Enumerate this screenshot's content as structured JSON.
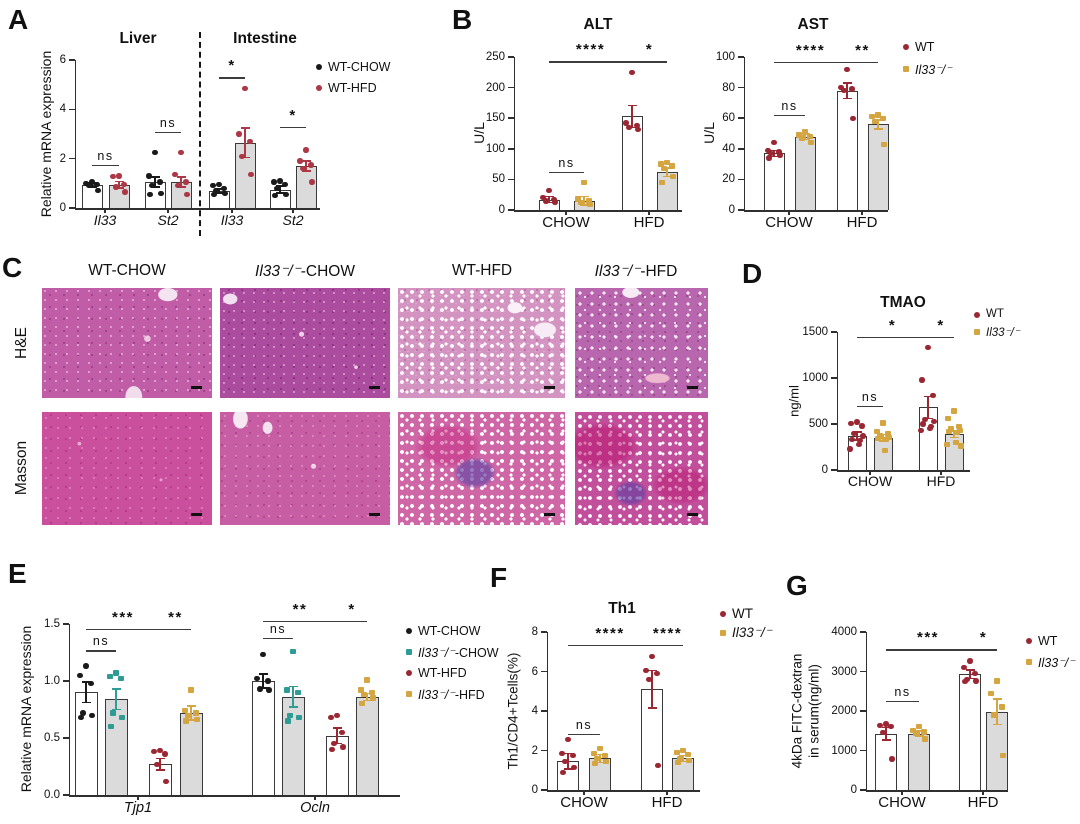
{
  "panels": {
    "a": "A",
    "b": "B",
    "c": "C",
    "d": "D",
    "e": "E",
    "f": "F",
    "g": "G"
  },
  "colors": {
    "wt_red": "#9B2733",
    "wt_red_bright": "#AD3745",
    "ko_yellow": "#D5A542",
    "teal": "#2E9C94",
    "black_dot": "#1A1A1A",
    "bar_gray": "#DBDBDB",
    "bar_border": "#3A3A3A",
    "axis": "#2F2F2F"
  },
  "panel_c": {
    "h1": "WT-CHOW",
    "h2_gene": "Il33⁻/⁻",
    "h2_rest": "-CHOW",
    "h3": "WT-HFD",
    "h4_gene": "Il33⁻/⁻",
    "h4_rest": "-HFD",
    "row1": "H&E",
    "row2": "Masson"
  },
  "chart_data": [
    {
      "id": "A",
      "type": "bar",
      "section_titles": [
        "Liver",
        "Intestine"
      ],
      "ylabel": "Relative mRNA expression",
      "ylim": [
        0,
        6
      ],
      "yticks": [
        0,
        2,
        4,
        6
      ],
      "categories": [
        "Il33",
        "St2",
        "Il33",
        "St2"
      ],
      "categories_italic": true,
      "series": [
        {
          "name": "WT-CHOW",
          "fill": "#FFFFFF",
          "color": "#1A1A1A",
          "marker": "circle",
          "values": [
            0.93,
            1.05,
            0.68,
            0.75
          ],
          "errors": [
            0.08,
            0.2,
            0.08,
            0.15
          ],
          "points": [
            [
              1.05,
              1.0,
              0.95,
              0.9,
              0.72
            ],
            [
              2.25,
              1.3,
              1.05,
              0.9,
              0.6,
              0.55
            ],
            [
              0.95,
              0.9,
              0.8,
              0.7,
              0.6,
              0.55
            ],
            [
              1.1,
              1.05,
              0.95,
              0.8,
              0.55,
              0.5
            ]
          ]
        },
        {
          "name": "WT-HFD",
          "fill": "#DBDBDB",
          "color": "#AD3745",
          "marker": "circle",
          "values": [
            0.95,
            1.05,
            2.65,
            1.7
          ],
          "errors": [
            0.13,
            0.2,
            0.6,
            0.2
          ],
          "points": [
            [
              1.3,
              1.28,
              0.95,
              0.85,
              0.65
            ],
            [
              2.25,
              1.35,
              1.05,
              0.9,
              0.55
            ],
            [
              4.85,
              3.0,
              2.7,
              2.1,
              1.35
            ],
            [
              2.35,
              1.9,
              1.75,
              1.6,
              1.05
            ]
          ]
        }
      ],
      "significance": [
        {
          "label": "ns",
          "bars": [
            0,
            1
          ],
          "y": 1.75
        },
        {
          "label": "ns",
          "bars": [
            2,
            3
          ],
          "y": 3.1
        },
        {
          "label": "*",
          "bars": [
            4,
            5
          ],
          "y": 5.3
        },
        {
          "label": "*",
          "bars": [
            6,
            7
          ],
          "y": 3.3
        }
      ],
      "legend": [
        {
          "segs": [
            {
              "t": "WT-CHOW",
              "i": false
            }
          ],
          "color": "#1A1A1A",
          "shape": "circle"
        },
        {
          "segs": [
            {
              "t": "WT-HFD",
              "i": false
            }
          ],
          "color": "#AD3745",
          "shape": "circle"
        }
      ]
    },
    {
      "id": "ALT",
      "type": "bar",
      "title": "ALT",
      "ylabel": "U/L",
      "ylim": [
        0,
        250
      ],
      "yticks": [
        0,
        50,
        100,
        150,
        200,
        250
      ],
      "categories": [
        "CHOW",
        "HFD"
      ],
      "series": [
        {
          "name": "WT",
          "fill": "#FFFFFF",
          "color": "#9B2733",
          "marker": "circle",
          "values": [
            17,
            153
          ],
          "errors": [
            5,
            18
          ],
          "points": [
            [
              32,
              20,
              17,
              15,
              13
            ],
            [
              225,
              142,
              138,
              135,
              132
            ]
          ]
        },
        {
          "name": "Il33⁻/⁻",
          "fill": "#DBDBDB",
          "color": "#D5A542",
          "marker": "square",
          "values": [
            15,
            62
          ],
          "errors": [
            7,
            7
          ],
          "points": [
            [
              45,
              18,
              15,
              12,
              9
            ],
            [
              78,
              75,
              72,
              68,
              55,
              45
            ]
          ]
        }
      ],
      "significance": [
        {
          "label": "ns",
          "bars": [
            0,
            1
          ],
          "y": 62
        },
        {
          "label": "****",
          "bars": [
            0,
            2
          ],
          "y": 243
        },
        {
          "label": "*",
          "bars": [
            2,
            3
          ],
          "y": 243
        }
      ]
    },
    {
      "id": "AST",
      "type": "bar",
      "title": "AST",
      "ylabel": "U/L",
      "ylim": [
        0,
        100
      ],
      "yticks": [
        0,
        20,
        40,
        60,
        80,
        100
      ],
      "categories": [
        "CHOW",
        "HFD"
      ],
      "series": [
        {
          "name": "WT",
          "fill": "#FFFFFF",
          "color": "#9B2733",
          "marker": "circle",
          "values": [
            37,
            78
          ],
          "errors": [
            2,
            5
          ],
          "points": [
            [
              44,
              39,
              38,
              37,
              36,
              34
            ],
            [
              92,
              80,
              79,
              78,
              60
            ]
          ]
        },
        {
          "name": "Il33⁻/⁻",
          "fill": "#DBDBDB",
          "color": "#D5A542",
          "marker": "square",
          "values": [
            48,
            56
          ],
          "errors": [
            2,
            3
          ],
          "points": [
            [
              51,
              49,
              48,
              47,
              44
            ],
            [
              62,
              61,
              60,
              58,
              43
            ]
          ]
        }
      ],
      "significance": [
        {
          "label": "ns",
          "bars": [
            0,
            1
          ],
          "y": 62
        },
        {
          "label": "****",
          "bars": [
            0,
            2
          ],
          "y": 97
        },
        {
          "label": "**",
          "bars": [
            2,
            3
          ],
          "y": 97
        }
      ],
      "legend": [
        {
          "segs": [
            {
              "t": "WT",
              "i": false
            }
          ],
          "color": "#9B2733",
          "shape": "circle"
        },
        {
          "segs": [
            {
              "t": "Il33⁻/⁻",
              "i": true
            }
          ],
          "color": "#D5A542",
          "shape": "square"
        }
      ]
    },
    {
      "id": "TMAO",
      "type": "bar",
      "title": "TMAO",
      "ylabel": "ng/ml",
      "ylim": [
        0,
        1500
      ],
      "yticks": [
        0,
        500,
        1000,
        1500
      ],
      "categories": [
        "CHOW",
        "HFD"
      ],
      "series": [
        {
          "name": "WT",
          "fill": "#FFFFFF",
          "color": "#9B2733",
          "marker": "circle",
          "values": [
            370,
            680
          ],
          "errors": [
            45,
            120
          ],
          "points": [
            [
              520,
              505,
              480,
              400,
              370,
              330,
              320,
              280,
              230
            ],
            [
              1330,
              980,
              810,
              550,
              530,
              500,
              470,
              450,
              430
            ]
          ]
        },
        {
          "name": "Il33⁻/⁻",
          "fill": "#DBDBDB",
          "color": "#D5A542",
          "marker": "square",
          "values": [
            350,
            390
          ],
          "errors": [
            35,
            35
          ],
          "points": [
            [
              510,
              420,
              390,
              370,
              355,
              345,
              330,
              215
            ],
            [
              640,
              560,
              470,
              445,
              430,
              420,
              405,
              300,
              280,
              260
            ]
          ]
        }
      ],
      "significance": [
        {
          "label": "ns",
          "bars": [
            0,
            1
          ],
          "y": 700
        },
        {
          "label": "*",
          "bars": [
            0,
            2
          ],
          "y": 1450
        },
        {
          "label": "*",
          "bars": [
            2,
            3
          ],
          "y": 1450
        }
      ],
      "legend": [
        {
          "segs": [
            {
              "t": "WT",
              "i": false
            }
          ],
          "color": "#9B2733",
          "shape": "circle"
        },
        {
          "segs": [
            {
              "t": "Il33⁻/⁻",
              "i": true
            }
          ],
          "color": "#D5A542",
          "shape": "square"
        }
      ]
    },
    {
      "id": "E",
      "type": "bar",
      "ylabel": "Relative mRNA expression",
      "ylim": [
        0,
        1.5
      ],
      "yticks": [
        0,
        0.5,
        1,
        1.5
      ],
      "ytick_labels": [
        "0.0",
        "0.5",
        "1.0",
        "1.5"
      ],
      "categories": [
        "Tjp1",
        "Ocln"
      ],
      "categories_italic": true,
      "series": [
        {
          "name": "WT-CHOW",
          "fill": "#FFFFFF",
          "color": "#1A1A1A",
          "marker": "circle",
          "values": [
            0.9,
            1.0
          ],
          "errors": [
            0.09,
            0.06
          ],
          "points": [
            [
              1.13,
              1.05,
              0.98,
              0.72,
              0.7,
              0.68
            ],
            [
              1.23,
              1.02,
              1.0,
              0.93,
              0.92
            ]
          ]
        },
        {
          "name": "Il33⁻/⁻-CHOW",
          "fill": "#DBDBDB",
          "color": "#2E9C94",
          "marker": "square",
          "values": [
            0.84,
            0.86
          ],
          "errors": [
            0.09,
            0.09
          ],
          "points": [
            [
              1.07,
              1.04,
              1.02,
              0.72,
              0.68,
              0.6
            ],
            [
              1.26,
              0.92,
              0.9,
              0.7,
              0.68,
              0.65
            ]
          ]
        },
        {
          "name": "WT-HFD",
          "fill": "#FFFFFF",
          "color": "#9B2733",
          "marker": "circle",
          "values": [
            0.27,
            0.52
          ],
          "errors": [
            0.05,
            0.07
          ],
          "points": [
            [
              0.39,
              0.38,
              0.36,
              0.27,
              0.12
            ],
            [
              0.7,
              0.68,
              0.55,
              0.45,
              0.42,
              0.4
            ]
          ]
        },
        {
          "name": "Il33⁻/⁻-HFD",
          "fill": "#DBDBDB",
          "color": "#D5A542",
          "marker": "square",
          "values": [
            0.72,
            0.86
          ],
          "errors": [
            0.06,
            0.03
          ],
          "points": [
            [
              0.92,
              0.74,
              0.72,
              0.7,
              0.66,
              0.65
            ],
            [
              1.01,
              0.92,
              0.9,
              0.88,
              0.85,
              0.8
            ]
          ]
        }
      ],
      "significance": [
        {
          "label": "ns",
          "bars": [
            0,
            1
          ],
          "y": 1.27
        },
        {
          "label": "***",
          "bars": [
            0,
            2
          ],
          "y": 1.46
        },
        {
          "label": "**",
          "bars": [
            2,
            3
          ],
          "y": 1.46
        },
        {
          "label": "ns",
          "bars": [
            4,
            5
          ],
          "y": 1.38
        },
        {
          "label": "**",
          "bars": [
            4,
            6
          ],
          "y": 1.53
        },
        {
          "label": "*",
          "bars": [
            6,
            7
          ],
          "y": 1.53
        }
      ],
      "legend": [
        {
          "segs": [
            {
              "t": "WT-CHOW",
              "i": false
            }
          ],
          "color": "#1A1A1A",
          "shape": "circle"
        },
        {
          "segs": [
            {
              "t": "Il33⁻/⁻",
              "i": true
            },
            {
              "t": "-CHOW",
              "i": false
            }
          ],
          "color": "#2E9C94",
          "shape": "square"
        },
        {
          "segs": [
            {
              "t": "WT-HFD",
              "i": false
            }
          ],
          "color": "#9B2733",
          "shape": "circle"
        },
        {
          "segs": [
            {
              "t": "Il33⁻/⁻",
              "i": true
            },
            {
              "t": "-HFD",
              "i": false
            }
          ],
          "color": "#D5A542",
          "shape": "square"
        }
      ]
    },
    {
      "id": "F",
      "type": "bar",
      "title": "Th1",
      "ylabel": "Th1/CD4+Tcells(%)",
      "ylim": [
        0,
        8
      ],
      "yticks": [
        0,
        2,
        4,
        6,
        8
      ],
      "categories": [
        "CHOW",
        "HFD"
      ],
      "series": [
        {
          "name": "WT",
          "fill": "#FFFFFF",
          "color": "#9B2733",
          "marker": "circle",
          "values": [
            1.45,
            5.1
          ],
          "errors": [
            0.4,
            0.95
          ],
          "points": [
            [
              2.55,
              1.85,
              1.75,
              1.45,
              1.15,
              0.9
            ],
            [
              6.75,
              6.05,
              5.9,
              5.6,
              1.25
            ]
          ]
        },
        {
          "name": "Il33⁻/⁻",
          "fill": "#DBDBDB",
          "color": "#D5A542",
          "marker": "square",
          "values": [
            1.6,
            1.6
          ],
          "errors": [
            0.2,
            0.15
          ],
          "points": [
            [
              2.1,
              1.85,
              1.75,
              1.6,
              1.45,
              1.35
            ],
            [
              2.0,
              1.9,
              1.8,
              1.6,
              1.5,
              1.4
            ]
          ]
        }
      ],
      "significance": [
        {
          "label": "ns",
          "bars": [
            0,
            1
          ],
          "y": 2.85
        },
        {
          "label": "****",
          "bars": [
            0,
            2
          ],
          "y": 7.35
        },
        {
          "label": "****",
          "bars": [
            2,
            3
          ],
          "y": 7.35
        }
      ],
      "legend": [
        {
          "segs": [
            {
              "t": "WT",
              "i": false
            }
          ],
          "color": "#9B2733",
          "shape": "circle"
        },
        {
          "segs": [
            {
              "t": "Il33⁻/⁻",
              "i": true
            }
          ],
          "color": "#D5A542",
          "shape": "square"
        }
      ]
    },
    {
      "id": "G",
      "type": "bar",
      "ylabel": [
        "4kDa FITC-dextran",
        "in serum(ng/ml)"
      ],
      "ylim": [
        0,
        4000
      ],
      "yticks": [
        0,
        1000,
        2000,
        3000,
        4000
      ],
      "categories": [
        "CHOW",
        "HFD"
      ],
      "series": [
        {
          "name": "WT",
          "fill": "#FFFFFF",
          "color": "#9B2733",
          "marker": "circle",
          "values": [
            1420,
            2930
          ],
          "errors": [
            160,
            110
          ],
          "points": [
            [
              1670,
              1640,
              1600,
              1450,
              780
            ],
            [
              3270,
              3100,
              2950,
              2800,
              2760,
              2750
            ]
          ]
        },
        {
          "name": "Il33⁻/⁻",
          "fill": "#DBDBDB",
          "color": "#D5A542",
          "marker": "square",
          "values": [
            1430,
            1980
          ],
          "errors": [
            70,
            320
          ],
          "points": [
            [
              1610,
              1500,
              1470,
              1440,
              1290
            ],
            [
              2760,
              2450,
              2100,
              1900,
              880
            ]
          ]
        }
      ],
      "significance": [
        {
          "label": "ns",
          "bars": [
            0,
            1
          ],
          "y": 2250
        },
        {
          "label": "***",
          "bars": [
            0,
            2
          ],
          "y": 3560
        },
        {
          "label": "*",
          "bars": [
            2,
            3
          ],
          "y": 3560
        }
      ],
      "legend": [
        {
          "segs": [
            {
              "t": "WT",
              "i": false
            }
          ],
          "color": "#9B2733",
          "shape": "circle"
        },
        {
          "segs": [
            {
              "t": "Il33⁻/⁻",
              "i": true
            }
          ],
          "color": "#D5A542",
          "shape": "square"
        }
      ]
    }
  ]
}
